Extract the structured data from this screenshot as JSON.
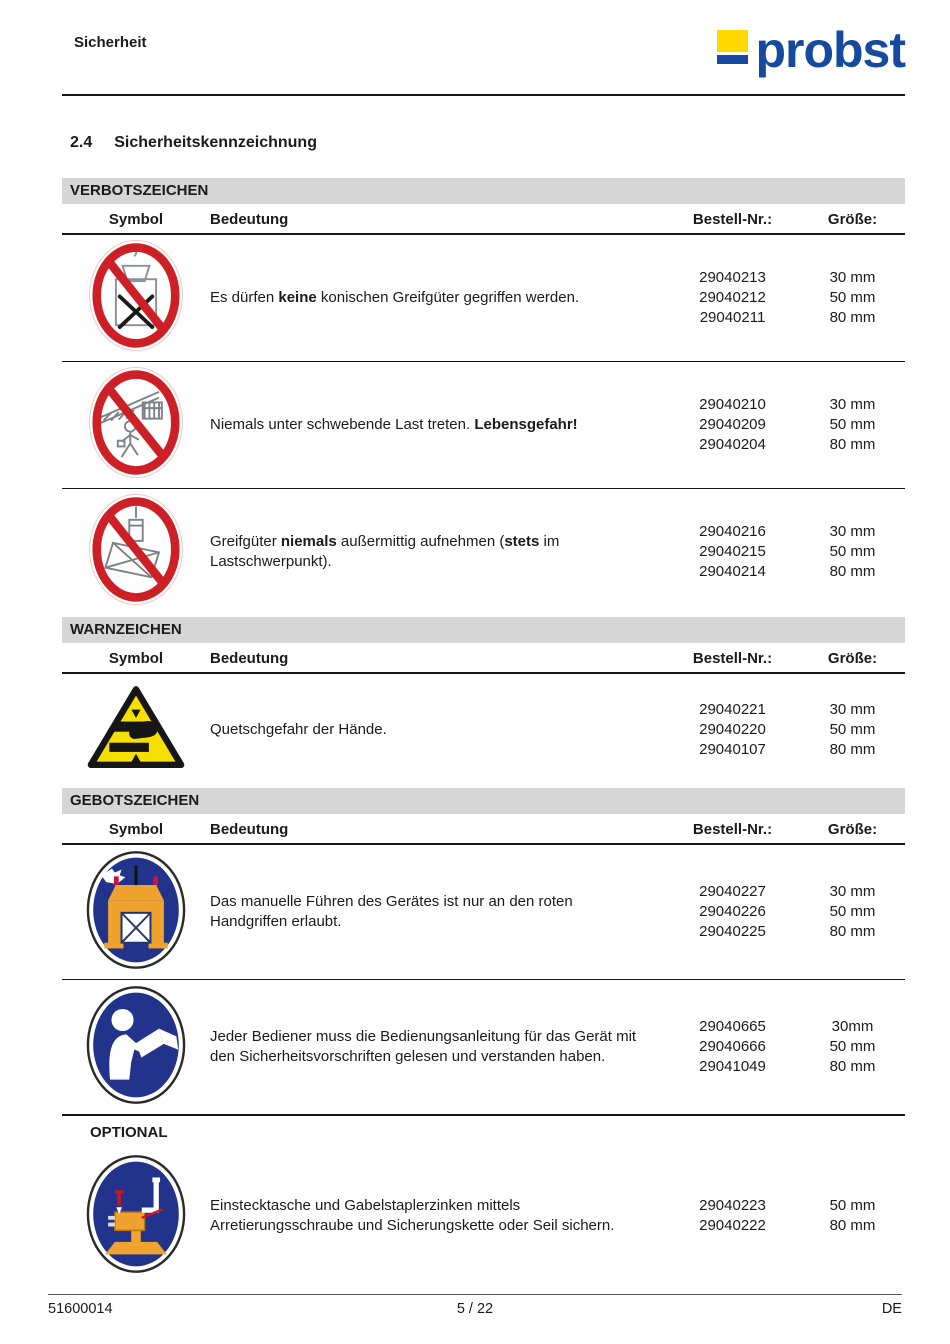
{
  "header": {
    "breadcrumb": "Sicherheit",
    "logo_text": "probst"
  },
  "heading": {
    "number": "2.4",
    "title": "Sicherheitskennzeichnung"
  },
  "columns": {
    "symbol": "Symbol",
    "meaning": "Bedeutung",
    "order": "Bestell-Nr.:",
    "size": "Größe:"
  },
  "groups": [
    {
      "type": "section",
      "title": "VERBOTSZEICHEN",
      "slug": "verbote",
      "rows": [
        {
          "icon": "no-conical-goods-prohibition-icon",
          "meaning": [
            {
              "t": "Es dürfen "
            },
            {
              "t": "keine",
              "b": true
            },
            {
              "t": " konischen Greifgüter gegriffen werden."
            }
          ],
          "orders": [
            "29040213",
            "29040212",
            "29040211"
          ],
          "sizes": [
            "30 mm",
            "50 mm",
            "80 mm"
          ],
          "divider": "thin"
        },
        {
          "icon": "no-standing-under-load-prohibition-icon",
          "meaning": [
            {
              "t": "Niemals unter schwebende Last treten. "
            },
            {
              "t": "Lebensgefahr!",
              "b": true
            }
          ],
          "orders": [
            "29040210",
            "29040209",
            "29040204"
          ],
          "sizes": [
            "30 mm",
            "50 mm",
            "80 mm"
          ],
          "divider": "thin"
        },
        {
          "icon": "no-off-center-lifting-prohibition-icon",
          "meaning": [
            {
              "t": "Greifgüter "
            },
            {
              "t": "niemals",
              "b": true
            },
            {
              "t": " außermittig aufnehmen ("
            },
            {
              "t": "stets",
              "b": true
            },
            {
              "t": " im Lastschwerpunkt)."
            }
          ],
          "orders": [
            "29040216",
            "29040215",
            "29040214"
          ],
          "sizes": [
            "30 mm",
            "50 mm",
            "80 mm"
          ],
          "divider": "none"
        }
      ]
    },
    {
      "type": "section",
      "title": "WARNZEICHEN",
      "slug": "warn",
      "rows": [
        {
          "icon": "hand-crush-warning-icon",
          "meaning": [
            {
              "t": "Quetschgefahr der Hände."
            }
          ],
          "orders": [
            "29040221",
            "29040220",
            "29040107"
          ],
          "sizes": [
            "30 mm",
            "50 mm",
            "80 mm"
          ],
          "divider": "none"
        }
      ]
    },
    {
      "type": "section",
      "title": "GEBOTSZEICHEN",
      "slug": "gebote",
      "rows": [
        {
          "icon": "manual-guiding-red-handles-mandatory-icon",
          "meaning": [
            {
              "t": "Das manuelle Führen des Gerätes ist nur an den roten Handgriffen erlaubt."
            }
          ],
          "orders": [
            "29040227",
            "29040226",
            "29040225"
          ],
          "sizes": [
            "30 mm",
            "50 mm",
            "80 mm"
          ],
          "divider": "thin"
        },
        {
          "icon": "read-operating-manual-mandatory-icon",
          "meaning": [
            {
              "t": "Jeder Bediener muss die Bedienungsanleitung für das Gerät mit den Sicherheitsvorschriften gelesen und verstanden haben."
            }
          ],
          "orders": [
            "29040665",
            "29040666",
            "29041049"
          ],
          "sizes": [
            "30mm",
            "50 mm",
            "80 mm"
          ],
          "divider": "thick"
        }
      ]
    },
    {
      "type": "label",
      "title": "OPTIONAL",
      "slug": "optional",
      "rows": [
        {
          "icon": "secure-fork-pocket-mandatory-icon",
          "meaning": [
            {
              "t": "Einstecktasche und Gabelstaplerzinken mittels Arretierungsschraube und Sicherungskette oder Seil sichern."
            }
          ],
          "orders": [
            "29040223",
            "29040222"
          ],
          "sizes": [
            "50 mm",
            "80 mm"
          ],
          "divider": "none"
        }
      ]
    }
  ],
  "footer": {
    "doc_number": "51600014",
    "page": "5 / 22",
    "language": "DE"
  },
  "colors": {
    "logo_blue": "#164a9e",
    "logo_yellow": "#ffd800",
    "bar_gray": "#d6d6d6",
    "prohibition_red": "#cd2026",
    "warning_yellow": "#f6e000",
    "mandatory_blue": "#21338b",
    "pictogram_orange": "#f0a22e",
    "handle_red": "#cc1144"
  }
}
